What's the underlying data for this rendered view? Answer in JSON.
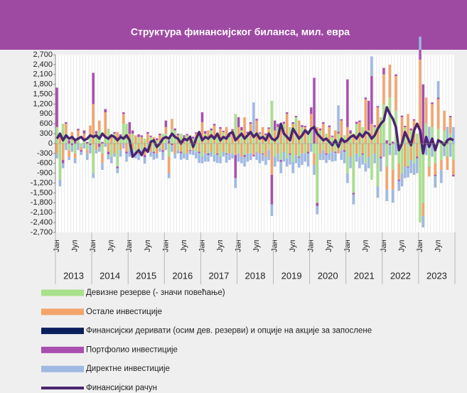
{
  "chart_data": {
    "type": "bar",
    "title": "Структура финансијског биланса, мил. евра",
    "categories": [
      "Јан",
      null,
      null,
      null,
      null,
      null,
      "Јул",
      null,
      null,
      null,
      null,
      null,
      "Јан",
      null,
      null,
      null,
      null,
      null,
      "Јул",
      null,
      null,
      null,
      null,
      null,
      "Јан",
      null,
      null,
      null,
      null,
      null,
      "Јул",
      null,
      null,
      null,
      null,
      null,
      "Јан",
      null,
      null,
      null,
      null,
      null,
      "Јул",
      null,
      null,
      null,
      null,
      null,
      "Јан",
      null,
      null,
      null,
      null,
      null,
      "Јул",
      null,
      null,
      null,
      null,
      null,
      "Јан",
      null,
      null,
      null,
      null,
      null,
      "Јул",
      null,
      null,
      null,
      null,
      null,
      "Јан",
      null,
      null,
      null,
      null,
      null,
      "Јул",
      null,
      null,
      null,
      null,
      null,
      "Јан",
      null,
      null,
      null,
      null,
      null,
      "Јул",
      null,
      null,
      null,
      null,
      null,
      "Јан",
      null,
      null,
      null,
      null,
      null,
      "Јул",
      null,
      null,
      null,
      null,
      null,
      "Јан",
      null,
      null,
      null,
      null,
      null,
      "Јул",
      null,
      null,
      null,
      null,
      null,
      "Јан",
      null,
      null,
      null,
      null,
      null,
      "Јул",
      null,
      null,
      null,
      null,
      null
    ],
    "year_groups": [
      "2013",
      "2014",
      "2015",
      "2016",
      "2017",
      "2018",
      "2019",
      "2020",
      "2021",
      "2022",
      "2023"
    ],
    "ylim": [
      -2700,
      2700
    ],
    "yticks": [
      {
        "value": -2700,
        "label": "-2,700"
      },
      {
        "value": -2400,
        "label": "-2,400"
      },
      {
        "value": -2100,
        "label": "-2,100"
      },
      {
        "value": -1800,
        "label": "-1,800"
      },
      {
        "value": -1500,
        "label": "-1,500"
      },
      {
        "value": -1200,
        "label": "-1,200"
      },
      -900,
      -600,
      -300,
      0,
      300,
      600,
      900,
      {
        "value": 1200,
        "label": "1,200"
      },
      {
        "value": 1500,
        "label": "1,500"
      },
      {
        "value": 1800,
        "label": "1,800"
      },
      {
        "value": 2100,
        "label": "2,100"
      },
      {
        "value": 2400,
        "label": "2,400"
      },
      {
        "value": 2700,
        "label": "2,700"
      }
    ],
    "series": [
      {
        "name": "Девизне резерве (- значи повећање)",
        "color": "#a9e08a",
        "values": [
          500,
          -1100,
          600,
          300,
          -200,
          100,
          -300,
          200,
          -100,
          150,
          -200,
          300,
          -900,
          300,
          400,
          -300,
          200,
          450,
          -400,
          300,
          -700,
          200,
          600,
          600,
          -200,
          300,
          -300,
          200,
          -200,
          150,
          -100,
          200,
          -250,
          100,
          -150,
          300,
          300,
          -400,
          450,
          400,
          -200,
          300,
          -300,
          250,
          -200,
          150,
          -250,
          350,
          -400,
          300,
          -300,
          400,
          -350,
          300,
          -400,
          350,
          -300,
          200,
          -300,
          900,
          -300,
          400,
          -350,
          300,
          -300,
          350,
          -250,
          300,
          -300,
          250,
          -200,
          1300,
          -400,
          500,
          -500,
          600,
          -450,
          500,
          -550,
          800,
          -400,
          500,
          -300,
          400,
          500,
          -300,
          -1800,
          400,
          -200,
          300,
          -300,
          200,
          -250,
          300,
          -200,
          250,
          -900,
          300,
          -1500,
          600,
          -400,
          500,
          -600,
          400,
          -1100,
          500,
          -1300,
          800,
          1200,
          -700,
          1400,
          -800,
          1000,
          -600,
          -900,
          500,
          -700,
          400,
          -600,
          300,
          -2400,
          -1800,
          600,
          -700,
          500,
          -600,
          450,
          -500,
          400,
          -400,
          300,
          -500
        ]
      },
      {
        "name": "Остале инвестиције",
        "color": "#f4a46a",
        "values": [
          -300,
          200,
          -500,
          300,
          -200,
          250,
          -150,
          200,
          -100,
          150,
          -100,
          250,
          1200,
          -200,
          300,
          -300,
          750,
          -250,
          200,
          -300,
          350,
          -200,
          300,
          -250,
          300,
          -200,
          250,
          -300,
          200,
          -350,
          300,
          -250,
          200,
          -300,
          250,
          -200,
          200,
          -500,
          300,
          -300,
          250,
          -250,
          200,
          -300,
          250,
          -200,
          300,
          -250,
          650,
          -300,
          400,
          -250,
          550,
          -300,
          450,
          -250,
          500,
          -300,
          400,
          -350,
          500,
          -400,
          800,
          -300,
          600,
          -350,
          700,
          -300,
          500,
          -400,
          450,
          -950,
          400,
          -300,
          500,
          -250,
          900,
          -300,
          600,
          -350,
          700,
          -300,
          500,
          -250,
          400,
          -350,
          500,
          -300,
          600,
          -300,
          500,
          -250,
          400,
          -300,
          700,
          -200,
          500,
          -400,
          300,
          -300,
          650,
          -300,
          1350,
          -400,
          600,
          -300,
          1100,
          -400,
          900,
          -700,
          1000,
          -600,
          1050,
          -500,
          800,
          -700,
          900,
          -500,
          700,
          -400,
          2550,
          -400,
          800,
          -300,
          700,
          -350,
          900,
          -300,
          600,
          -400,
          500,
          -450
        ]
      },
      {
        "name": "Финансијски деривати (осим дев. резерви) и опције на акције за запослене",
        "color": "#0a1f5c",
        "values": [
          0,
          0,
          0,
          0,
          0,
          0,
          0,
          0,
          0,
          0,
          0,
          0,
          0,
          0,
          0,
          0,
          0,
          0,
          0,
          0,
          0,
          0,
          0,
          0,
          0,
          0,
          0,
          0,
          0,
          0,
          0,
          0,
          0,
          0,
          0,
          0,
          0,
          0,
          0,
          0,
          0,
          0,
          0,
          0,
          0,
          0,
          0,
          0,
          0,
          0,
          0,
          0,
          0,
          0,
          0,
          0,
          0,
          0,
          0,
          0,
          0,
          0,
          0,
          0,
          0,
          0,
          0,
          0,
          0,
          0,
          0,
          0,
          0,
          0,
          0,
          0,
          0,
          0,
          0,
          0,
          0,
          0,
          0,
          0,
          0,
          0,
          0,
          0,
          0,
          0,
          0,
          0,
          0,
          0,
          0,
          0,
          0,
          0,
          0,
          0,
          0,
          0,
          0,
          0,
          0,
          0,
          0,
          0,
          0,
          0,
          0,
          0,
          0,
          0,
          0,
          0,
          0,
          0,
          0,
          0,
          0,
          0,
          0,
          0,
          0,
          0,
          0,
          0,
          0,
          0,
          0,
          0
        ]
      },
      {
        "name": "Портфолио инвестиције",
        "color": "#a94fb0",
        "values": [
          1200,
          100,
          -100,
          50,
          100,
          -50,
          80,
          50,
          -50,
          100,
          50,
          -50,
          950,
          80,
          -100,
          50,
          100,
          -80,
          60,
          50,
          -50,
          80,
          50,
          -50,
          350,
          100,
          -50,
          80,
          50,
          -60,
          50,
          40,
          -40,
          60,
          50,
          -50,
          200,
          100,
          -50,
          60,
          50,
          -40,
          50,
          40,
          -30,
          60,
          40,
          -40,
          300,
          80,
          -50,
          60,
          50,
          -40,
          50,
          40,
          -30,
          60,
          40,
          -700,
          300,
          100,
          -50,
          60,
          50,
          -40,
          50,
          40,
          -30,
          60,
          40,
          -900,
          300,
          100,
          -50,
          60,
          50,
          -40,
          50,
          40,
          -30,
          60,
          40,
          -50,
          200,
          2000,
          -100,
          60,
          50,
          -40,
          50,
          40,
          -30,
          60,
          40,
          -50,
          1450,
          100,
          -50,
          60,
          50,
          -40,
          50,
          900,
          1450,
          60,
          40,
          -50,
          200,
          100,
          -50,
          60,
          50,
          -40,
          50,
          40,
          -30,
          60,
          40,
          -50,
          300,
          1800,
          -50,
          60,
          50,
          -40,
          50,
          40,
          -30,
          60,
          40,
          -50
        ]
      },
      {
        "name": "Директне инвестиције",
        "color": "#9fb9e3",
        "values": [
          -150,
          -200,
          -150,
          -200,
          -100,
          -200,
          -150,
          -200,
          -100,
          -150,
          -200,
          -250,
          -150,
          -100,
          -150,
          -200,
          -100,
          -150,
          -200,
          -100,
          -150,
          -200,
          -150,
          -250,
          -200,
          -150,
          -100,
          -200,
          -150,
          -200,
          -100,
          -150,
          -200,
          -150,
          -100,
          -250,
          -200,
          -150,
          -200,
          -150,
          -100,
          -200,
          -150,
          -200,
          -100,
          -150,
          -200,
          -300,
          -200,
          -250,
          -200,
          -150,
          -200,
          -250,
          -200,
          -150,
          -250,
          -200,
          -150,
          -300,
          -250,
          -200,
          -300,
          -250,
          -200,
          900,
          -250,
          -300,
          -200,
          -250,
          -300,
          -350,
          -300,
          -250,
          -350,
          -300,
          -250,
          -300,
          -350,
          -250,
          -300,
          -350,
          -250,
          -400,
          -250,
          -300,
          -250,
          -200,
          -300,
          -250,
          -200,
          -300,
          -250,
          800,
          -300,
          -350,
          -300,
          -350,
          -300,
          -250,
          -350,
          -300,
          -250,
          -350,
          600,
          -300,
          -350,
          -400,
          -400,
          -350,
          -300,
          -400,
          -350,
          -300,
          -400,
          -350,
          -300,
          -400,
          -350,
          -450,
          400,
          -350,
          -300,
          450,
          -400,
          -350,
          500,
          -400,
          -350,
          450,
          -400,
          500
        ]
      },
      {
        "name": "Финансијски рачун",
        "color": "#4b2570",
        "type": "line",
        "values": [
          150,
          300,
          100,
          250,
          150,
          200,
          100,
          150,
          200,
          100,
          150,
          250,
          200,
          250,
          150,
          300,
          200,
          150,
          250,
          200,
          100,
          200,
          150,
          250,
          100,
          -400,
          -300,
          -200,
          -350,
          -150,
          -250,
          50,
          100,
          -100,
          0,
          150,
          200,
          150,
          300,
          200,
          150,
          0,
          150,
          100,
          200,
          -100,
          150,
          350,
          100,
          200,
          150,
          250,
          150,
          300,
          100,
          200,
          150,
          300,
          350,
          100,
          200,
          300,
          150,
          250,
          350,
          200,
          300,
          150,
          200,
          100,
          300,
          150,
          100,
          200,
          600,
          300,
          200,
          100,
          450,
          300,
          150,
          250,
          400,
          300,
          450,
          500,
          300,
          200,
          100,
          150,
          50,
          -50,
          100,
          -100,
          150,
          50,
          100,
          200,
          250,
          150,
          300,
          200,
          350,
          300,
          150,
          250,
          450,
          600,
          700,
          1100,
          900,
          750,
          500,
          -200,
          0,
          350,
          150,
          -50,
          400,
          600,
          400,
          -300,
          200,
          -100,
          150,
          -200,
          100,
          50,
          -50,
          100,
          150,
          100
        ]
      }
    ]
  }
}
